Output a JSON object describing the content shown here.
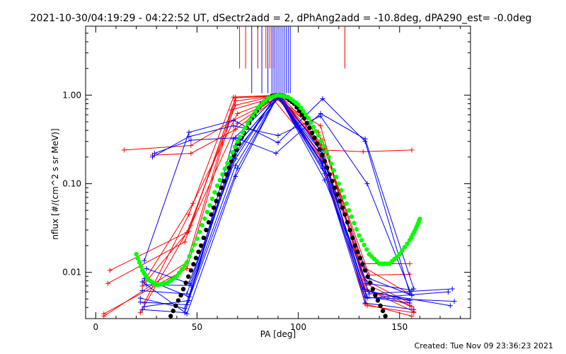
{
  "chart_data": {
    "type": "line",
    "title": "2021-10-30/04:19:29 - 04:22:52 UT, dSectr2add = 2, dPhAng2add = -10.8deg, dPA290_est= -0.0deg",
    "xlabel": "PA [deg]",
    "ylabel": "nflux [#/(cm^2 s sr MeV)]",
    "footer": "Created: Tue Nov 09 23:36:23 2021",
    "xlim": [
      -5,
      185
    ],
    "ylim": [
      0.003,
      6
    ],
    "yscale": "log",
    "grid": false,
    "x_ticks": [
      0,
      50,
      100,
      150
    ],
    "x_tick_labels": [
      "0",
      "50",
      "100",
      "150"
    ],
    "y_ticks": [
      0.01,
      0.1,
      1.0
    ],
    "y_tick_labels": [
      "0.01",
      "0.10",
      "1.00"
    ],
    "colors": {
      "red": "#ff0000",
      "blue": "#0000ff",
      "black": "#000000",
      "green": "#00ff00"
    },
    "vertical_lines": [
      {
        "color": "red",
        "x": [
          71,
          74,
          80,
          84,
          86,
          87,
          88,
          123
        ],
        "y_bottom": 2.0
      },
      {
        "color": "blue",
        "x": [
          77,
          82,
          85,
          87,
          88,
          89,
          90,
          91,
          92,
          93,
          94,
          95,
          96
        ],
        "y_bottom": 1.05
      }
    ],
    "series": [
      {
        "color": "red",
        "x": [
          4,
          45,
          69,
          90,
          113,
          133,
          155
        ],
        "y": [
          0.0032,
          0.013,
          0.95,
          1.0,
          0.26,
          0.0082,
          0.0045
        ]
      },
      {
        "color": "red",
        "x": [
          6,
          44,
          69,
          90,
          112,
          132,
          156
        ],
        "y": [
          0.0075,
          0.022,
          0.93,
          0.98,
          0.19,
          0.0115,
          0.0055
        ]
      },
      {
        "color": "red",
        "x": [
          7,
          46,
          67,
          89,
          114,
          134,
          157
        ],
        "y": [
          0.0105,
          0.029,
          0.68,
          0.95,
          0.23,
          0.0064,
          0.0036
        ]
      },
      {
        "color": "red",
        "x": [
          14,
          47,
          68,
          89,
          111,
          133,
          155
        ],
        "y": [
          0.24,
          0.27,
          0.52,
          0.9,
          0.45,
          0.0065,
          0.0042
        ]
      },
      {
        "color": "red",
        "x": [
          22,
          47,
          70,
          90,
          112,
          132,
          156
        ],
        "y": [
          0.0035,
          0.034,
          0.48,
          0.97,
          0.24,
          0.23,
          0.24
        ]
      },
      {
        "color": "red",
        "x": [
          23,
          45,
          69,
          89,
          113,
          135,
          155
        ],
        "y": [
          0.007,
          0.028,
          0.77,
          0.99,
          0.25,
          0.0093,
          0.0095
        ]
      },
      {
        "color": "red",
        "x": [
          24,
          48,
          70,
          90,
          110,
          133,
          156
        ],
        "y": [
          0.008,
          0.06,
          0.62,
          0.92,
          0.38,
          0.0044,
          0.0032
        ]
      },
      {
        "color": "red",
        "x": [
          28,
          47,
          69,
          88,
          111,
          134,
          157
        ],
        "y": [
          0.21,
          0.22,
          0.41,
          0.88,
          0.2,
          0.0042,
          0.0035
        ]
      },
      {
        "color": "red",
        "x": [
          4,
          45,
          69,
          91,
          112,
          133,
          156
        ],
        "y": [
          0.0034,
          0.011,
          0.86,
          1.0,
          0.31,
          0.0075,
          0.0041
        ]
      },
      {
        "color": "red",
        "x": [
          24,
          46,
          68,
          90,
          114,
          132,
          155
        ],
        "y": [
          0.0045,
          0.045,
          0.95,
          0.99,
          0.22,
          0.0125,
          0.0125
        ]
      },
      {
        "color": "blue",
        "x": [
          24,
          46,
          68,
          90,
          112,
          133,
          155
        ],
        "y": [
          0.0135,
          0.38,
          0.52,
          0.29,
          0.91,
          0.3,
          0.0058
        ]
      },
      {
        "color": "blue",
        "x": [
          28,
          46,
          68,
          90,
          111,
          134,
          156
        ],
        "y": [
          0.2,
          0.34,
          0.45,
          0.35,
          0.58,
          0.1,
          0.0055
        ]
      },
      {
        "color": "blue",
        "x": [
          29,
          47,
          69,
          89,
          111,
          133,
          157
        ],
        "y": [
          0.22,
          0.31,
          0.33,
          0.22,
          0.62,
          0.32,
          0.0065
        ]
      },
      {
        "color": "blue",
        "x": [
          23,
          45,
          69,
          90,
          113,
          134,
          156
        ],
        "y": [
          0.0078,
          0.0034,
          0.12,
          1.0,
          0.11,
          0.0075,
          0.0063
        ]
      },
      {
        "color": "blue",
        "x": [
          24,
          46,
          69,
          90,
          112,
          133,
          155
        ],
        "y": [
          0.0085,
          0.0053,
          0.16,
          0.99,
          0.15,
          0.0053,
          0.0045
        ]
      },
      {
        "color": "blue",
        "x": [
          25,
          46,
          69,
          89,
          112,
          135,
          156
        ],
        "y": [
          0.011,
          0.0075,
          0.19,
          1.0,
          0.2,
          0.0085,
          0.0055
        ]
      },
      {
        "color": "blue",
        "x": [
          22,
          44,
          69,
          91,
          111,
          133,
          157
        ],
        "y": [
          0.0051,
          0.0039,
          0.23,
          0.98,
          0.18,
          0.0045,
          0.0038
        ]
      },
      {
        "color": "blue",
        "x": [
          23,
          45,
          70,
          90,
          113,
          132,
          155
        ],
        "y": [
          0.0062,
          0.0057,
          0.28,
          0.97,
          0.13,
          0.0064,
          0.0048
        ]
      },
      {
        "color": "blue",
        "x": [
          24,
          46,
          68,
          90,
          112,
          134,
          174
        ],
        "y": [
          0.0041,
          0.0048,
          0.32,
          1.0,
          0.17,
          0.0051,
          0.006
        ]
      },
      {
        "color": "blue",
        "x": [
          25,
          47,
          69,
          89,
          112,
          133,
          175
        ],
        "y": [
          0.0072,
          0.0071,
          0.21,
          0.99,
          0.22,
          0.0061,
          0.0042
        ]
      },
      {
        "color": "blue",
        "x": [
          22,
          45,
          70,
          90,
          113,
          135,
          176
        ],
        "y": [
          0.0046,
          0.0043,
          0.15,
          0.98,
          0.15,
          0.0057,
          0.0065
        ]
      },
      {
        "color": "blue",
        "x": [
          23,
          44,
          69,
          91,
          111,
          134,
          177
        ],
        "y": [
          0.0038,
          0.0035,
          0.27,
          1.0,
          0.24,
          0.0052,
          0.0047
        ]
      }
    ],
    "model_curves": [
      {
        "color": "black",
        "x": [
          37,
          42,
          47,
          52,
          57,
          62,
          67,
          72,
          77,
          82,
          87,
          90,
          93,
          98,
          103,
          108,
          113,
          118,
          123,
          128,
          133,
          138,
          143
        ],
        "y": [
          0.0032,
          0.0055,
          0.0105,
          0.02,
          0.045,
          0.09,
          0.18,
          0.33,
          0.55,
          0.8,
          0.98,
          1.0,
          0.98,
          0.8,
          0.55,
          0.33,
          0.18,
          0.09,
          0.045,
          0.02,
          0.0105,
          0.0055,
          0.0032
        ]
      },
      {
        "color": "green",
        "x": [
          20,
          23,
          26,
          30,
          35,
          40,
          45,
          50,
          55,
          60,
          65,
          70,
          75,
          80,
          85,
          90,
          95,
          100,
          105,
          110,
          115,
          120,
          125,
          130,
          135,
          140,
          145,
          150,
          155,
          158,
          160
        ],
        "y": [
          0.016,
          0.0105,
          0.0082,
          0.0072,
          0.0075,
          0.009,
          0.013,
          0.024,
          0.048,
          0.095,
          0.17,
          0.3,
          0.48,
          0.72,
          0.92,
          1.0,
          0.95,
          0.78,
          0.55,
          0.35,
          0.2,
          0.1,
          0.05,
          0.026,
          0.016,
          0.0125,
          0.0125,
          0.016,
          0.023,
          0.031,
          0.04
        ]
      }
    ]
  }
}
